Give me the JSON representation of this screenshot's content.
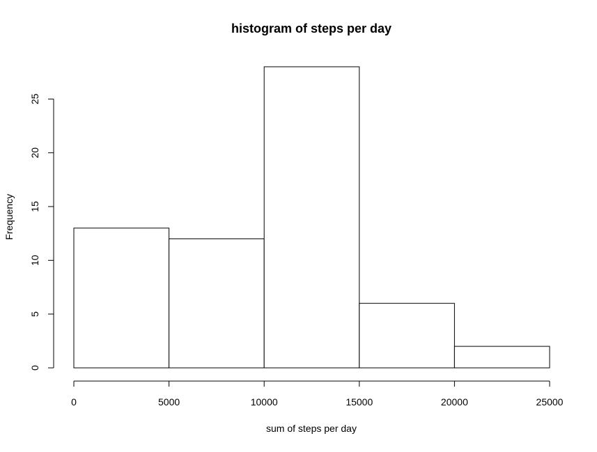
{
  "chart_data": {
    "type": "bar",
    "title": "histogram of steps per day",
    "xlabel": "sum of steps per day",
    "ylabel": "Frequency",
    "bins": [
      {
        "from": 0,
        "to": 5000,
        "count": 13
      },
      {
        "from": 5000,
        "to": 10000,
        "count": 12
      },
      {
        "from": 10000,
        "to": 15000,
        "count": 28
      },
      {
        "from": 15000,
        "to": 20000,
        "count": 6
      },
      {
        "from": 20000,
        "to": 25000,
        "count": 2
      }
    ],
    "xlim": [
      0,
      25000
    ],
    "ylim": [
      0,
      28
    ],
    "x_ticks": [
      0,
      5000,
      10000,
      15000,
      20000,
      25000
    ],
    "x_tick_labels": [
      "0",
      "5000",
      "10000",
      "15000",
      "20000",
      "25000"
    ],
    "y_ticks": [
      0,
      5,
      10,
      15,
      20,
      25
    ],
    "y_tick_labels": [
      "0",
      "5",
      "10",
      "15",
      "20",
      "25"
    ],
    "grid": false,
    "bar_fill": "#ffffff",
    "bar_stroke": "#000000"
  }
}
